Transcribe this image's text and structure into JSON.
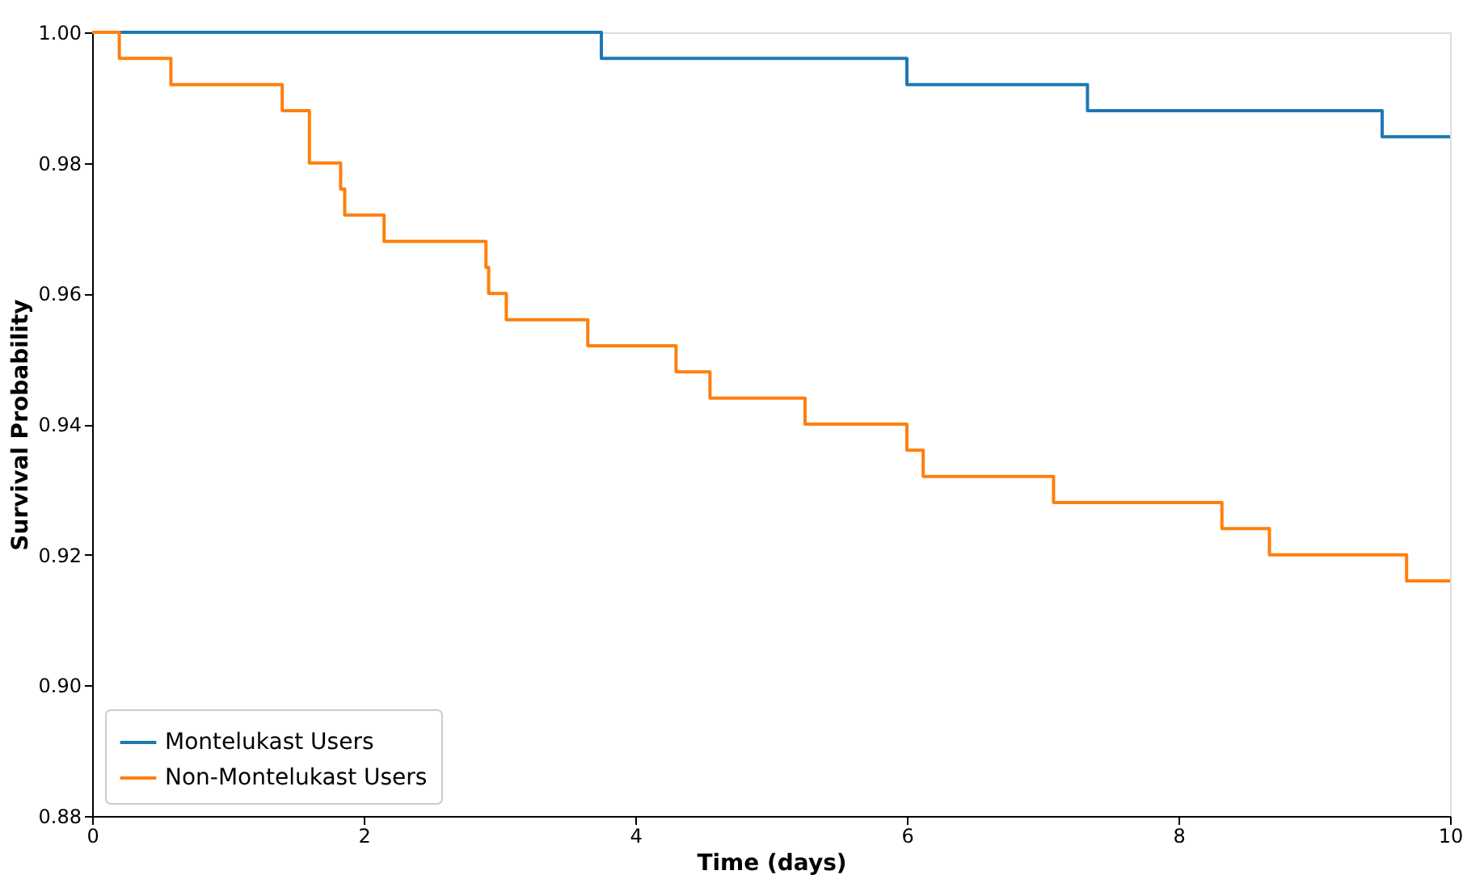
{
  "chart_data": {
    "type": "step",
    "xlabel": "Time (days)",
    "ylabel": "Survival Probability",
    "xlim": [
      0,
      10
    ],
    "ylim": [
      0.88,
      1.0
    ],
    "xticks": [
      0,
      2,
      4,
      6,
      8,
      10
    ],
    "yticks": [
      {
        "value": 0.88,
        "label": "0.88"
      },
      {
        "value": 0.9,
        "label": "0.90"
      },
      {
        "value": 0.92,
        "label": "0.92"
      },
      {
        "value": 0.94,
        "label": "0.94"
      },
      {
        "value": 0.96,
        "label": "0.96"
      },
      {
        "value": 0.98,
        "label": "0.98"
      },
      {
        "value": 1.0,
        "label": "1.00"
      }
    ],
    "grid": false,
    "legend": "bottom left",
    "marker": "none",
    "line_style": "solid",
    "series": [
      {
        "name": "Montelukast Users",
        "color": "#1f77b4",
        "x": [
          0,
          3.75,
          6.0,
          7.33,
          9.5,
          10
        ],
        "values": [
          1.0,
          0.996,
          0.992,
          0.988,
          0.984,
          0.984
        ]
      },
      {
        "name": "Non-Montelukast Users",
        "color": "#ff7f0e",
        "x": [
          0,
          0.2,
          0.58,
          1.4,
          1.6,
          1.83,
          1.86,
          2.15,
          2.9,
          2.92,
          3.05,
          3.65,
          4.3,
          4.55,
          5.25,
          6.0,
          6.12,
          7.08,
          8.32,
          8.67,
          9.68,
          10
        ],
        "values": [
          1.0,
          0.996,
          0.992,
          0.988,
          0.98,
          0.976,
          0.972,
          0.968,
          0.964,
          0.96,
          0.956,
          0.952,
          0.948,
          0.944,
          0.94,
          0.936,
          0.932,
          0.928,
          0.924,
          0.92,
          0.916,
          0.916
        ]
      }
    ]
  }
}
